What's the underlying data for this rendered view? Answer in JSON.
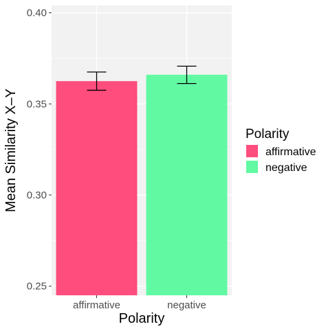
{
  "chart_data": {
    "type": "bar",
    "title": "",
    "xlabel": "Polarity",
    "ylabel": "Mean Similarity X–Y",
    "categories": [
      "affirmative",
      "negative"
    ],
    "values": [
      0.3625,
      0.366
    ],
    "error_low": [
      0.3575,
      0.3612
    ],
    "error_high": [
      0.3675,
      0.3707
    ],
    "ylim": [
      0.245,
      0.404
    ],
    "yticks": [
      0.25,
      0.3,
      0.35,
      0.4
    ],
    "ytick_labels": [
      "0.25",
      "0.30",
      "0.35",
      "0.40"
    ],
    "grid": true,
    "colors": [
      "#FF4D7D",
      "#62F9A3"
    ],
    "legend": {
      "title": "Polarity",
      "entries": [
        "affirmative",
        "negative"
      ],
      "position": "right"
    }
  }
}
